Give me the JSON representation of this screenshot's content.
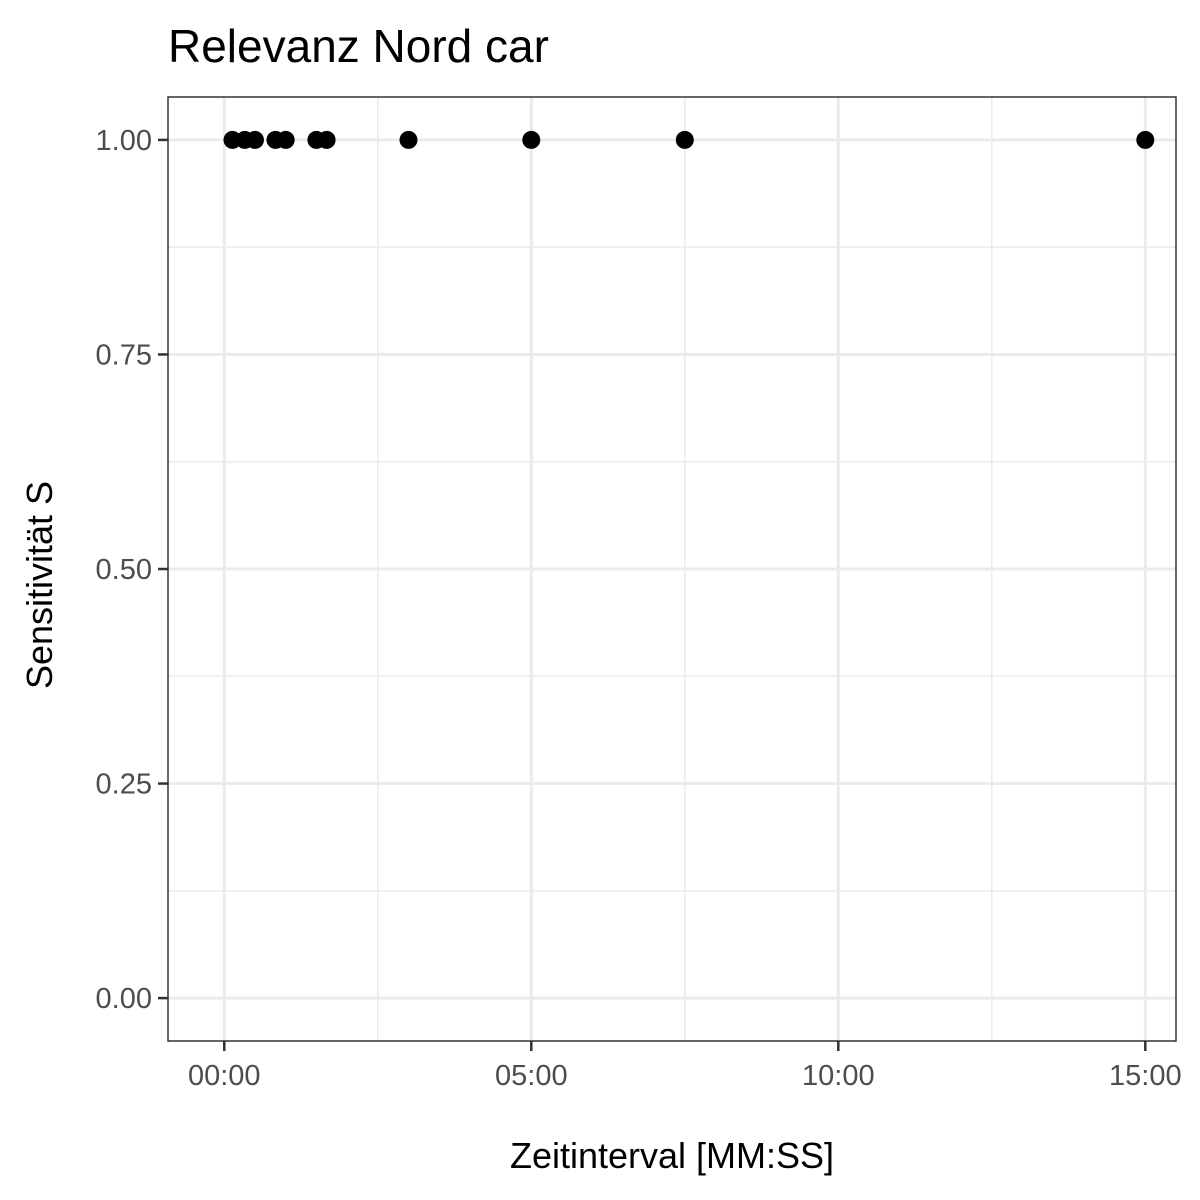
{
  "chart_data": {
    "type": "scatter",
    "title": "Relevanz Nord car",
    "xlabel": "Zeitinterval [MM:SS]",
    "ylabel": "Sensitivität S",
    "x_unit": "seconds",
    "xlim": [
      -55,
      930
    ],
    "ylim": [
      -0.05,
      1.05
    ],
    "x_ticks": [
      {
        "value": 0,
        "label": "00:00"
      },
      {
        "value": 300,
        "label": "05:00"
      },
      {
        "value": 600,
        "label": "10:00"
      },
      {
        "value": 900,
        "label": "15:00"
      }
    ],
    "x_minor_grid": [
      150,
      450,
      750
    ],
    "y_ticks": [
      {
        "value": 0,
        "label": "0.00"
      },
      {
        "value": 0.25,
        "label": "0.25"
      },
      {
        "value": 0.5,
        "label": "0.50"
      },
      {
        "value": 0.75,
        "label": "0.75"
      },
      {
        "value": 1,
        "label": "1.00"
      }
    ],
    "y_minor_grid": [
      0.125,
      0.375,
      0.625,
      0.875
    ],
    "grid": true,
    "points": [
      {
        "x": 8,
        "y": 1
      },
      {
        "x": 20,
        "y": 1
      },
      {
        "x": 30,
        "y": 1
      },
      {
        "x": 50,
        "y": 1
      },
      {
        "x": 60,
        "y": 1
      },
      {
        "x": 90,
        "y": 1
      },
      {
        "x": 100,
        "y": 1
      },
      {
        "x": 180,
        "y": 1
      },
      {
        "x": 300,
        "y": 1
      },
      {
        "x": 450,
        "y": 1
      },
      {
        "x": 900,
        "y": 1
      }
    ],
    "colors": {
      "point": "#000000",
      "grid": "#ebebeb",
      "panel_border": "#333333",
      "tick_text": "#4d4d4d"
    }
  }
}
